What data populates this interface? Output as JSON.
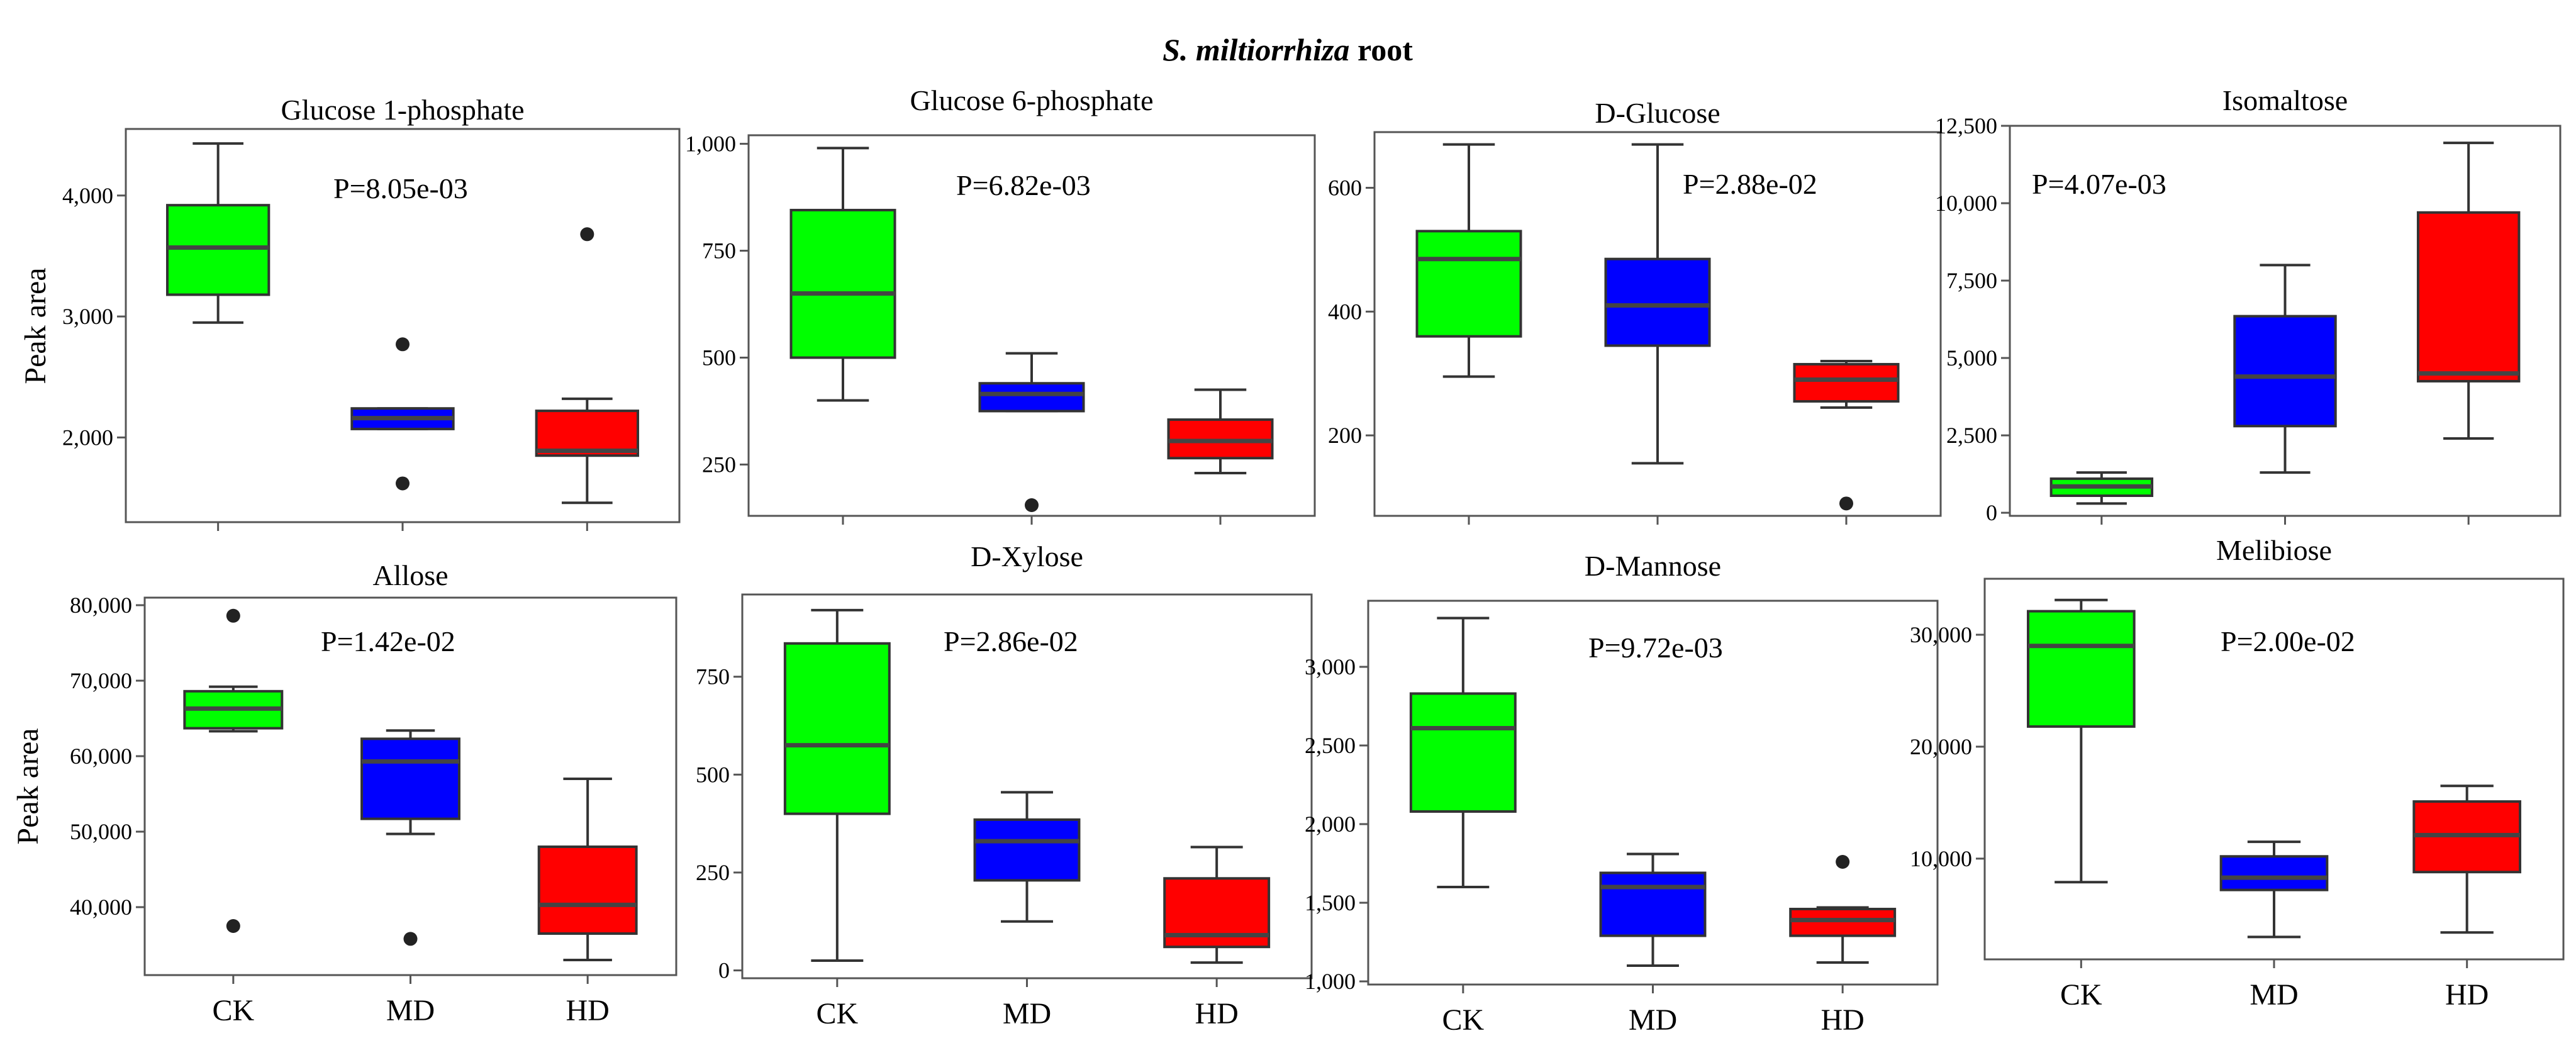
{
  "title": {
    "italic": "S. miltiorrhiza",
    "plain": " root"
  },
  "ylabel": "Peak area",
  "colors": {
    "CK": "#00ff00",
    "MD": "#0000ff",
    "HD": "#ff0000"
  },
  "chart_data": [
    {
      "type": "box",
      "title": "Glucose 1-phosphate",
      "pvalue": "P=8.05e-03",
      "categories": [
        "CK",
        "MD",
        "HD"
      ],
      "show_xlabels": false,
      "ylabel": "Peak area",
      "ylim": [
        1300,
        4550
      ],
      "yticks": [
        2000,
        3000,
        4000
      ],
      "ytick_labels": [
        "2,000",
        "3,000",
        "4,000"
      ],
      "boxes": [
        {
          "min": 2950,
          "q1": 3180,
          "median": 3570,
          "q3": 3920,
          "max": 4430,
          "outliers": []
        },
        {
          "min": 2070,
          "q1": 2070,
          "median": 2160,
          "q3": 2240,
          "max": 2240,
          "outliers": [
            2770,
            1620
          ]
        },
        {
          "min": 1460,
          "q1": 1850,
          "median": 1890,
          "q3": 2220,
          "max": 2320,
          "outliers": [
            3680
          ]
        }
      ]
    },
    {
      "type": "box",
      "title": "Glucose 6-phosphate",
      "pvalue": "P=6.82e-03",
      "categories": [
        "CK",
        "MD",
        "HD"
      ],
      "show_xlabels": false,
      "ylabel": "",
      "ylim": [
        130,
        1020
      ],
      "yticks": [
        250,
        500,
        750,
        1000
      ],
      "ytick_labels": [
        "250",
        "500",
        "750",
        "1,000"
      ],
      "boxes": [
        {
          "min": 400,
          "q1": 500,
          "median": 650,
          "q3": 845,
          "max": 990,
          "outliers": []
        },
        {
          "min": 375,
          "q1": 375,
          "median": 415,
          "q3": 440,
          "max": 510,
          "outliers": [
            155
          ]
        },
        {
          "min": 230,
          "q1": 265,
          "median": 305,
          "q3": 355,
          "max": 425,
          "outliers": []
        }
      ]
    },
    {
      "type": "box",
      "title": "D-Glucose",
      "pvalue": "P=2.88e-02",
      "categories": [
        "CK",
        "MD",
        "HD"
      ],
      "show_xlabels": false,
      "ylabel": "",
      "ylim": [
        70,
        690
      ],
      "yticks": [
        200,
        400,
        600
      ],
      "ytick_labels": [
        "200",
        "400",
        "600"
      ],
      "boxes": [
        {
          "min": 295,
          "q1": 360,
          "median": 485,
          "q3": 530,
          "max": 670,
          "outliers": []
        },
        {
          "min": 155,
          "q1": 345,
          "median": 410,
          "q3": 485,
          "max": 670,
          "outliers": []
        },
        {
          "min": 245,
          "q1": 255,
          "median": 290,
          "q3": 315,
          "max": 320,
          "outliers": [
            90
          ]
        }
      ]
    },
    {
      "type": "box",
      "title": "Isomaltose",
      "pvalue": "P=4.07e-03",
      "categories": [
        "CK",
        "MD",
        "HD"
      ],
      "show_xlabels": false,
      "ylabel": "",
      "ylim": [
        -100,
        12500
      ],
      "yticks": [
        0,
        2500,
        5000,
        7500,
        10000,
        12500
      ],
      "ytick_labels": [
        "0",
        "2,500",
        "5,000",
        "7,500",
        "10,000",
        "12,500"
      ],
      "boxes": [
        {
          "min": 300,
          "q1": 550,
          "median": 850,
          "q3": 1100,
          "max": 1300,
          "outliers": []
        },
        {
          "min": 1300,
          "q1": 2800,
          "median": 4400,
          "q3": 6350,
          "max": 8000,
          "outliers": []
        },
        {
          "min": 2400,
          "q1": 4250,
          "median": 4500,
          "q3": 9700,
          "max": 11950,
          "outliers": []
        }
      ]
    },
    {
      "type": "box",
      "title": "Allose",
      "pvalue": "P=1.42e-02",
      "categories": [
        "CK",
        "MD",
        "HD"
      ],
      "show_xlabels": true,
      "ylabel": "Peak area",
      "ylim": [
        31000,
        81000
      ],
      "yticks": [
        40000,
        50000,
        60000,
        70000,
        80000
      ],
      "ytick_labels": [
        "40,000",
        "50,000",
        "60,000",
        "70,000",
        "80,000"
      ],
      "boxes": [
        {
          "min": 63300,
          "q1": 63700,
          "median": 66300,
          "q3": 68600,
          "max": 69200,
          "outliers": [
            78600,
            37500
          ]
        },
        {
          "min": 49700,
          "q1": 51700,
          "median": 59300,
          "q3": 62300,
          "max": 63400,
          "outliers": [
            35800
          ]
        },
        {
          "min": 33000,
          "q1": 36500,
          "median": 40300,
          "q3": 48000,
          "max": 57000,
          "outliers": []
        }
      ]
    },
    {
      "type": "box",
      "title": "D-Xylose",
      "pvalue": "P=2.86e-02",
      "categories": [
        "CK",
        "MD",
        "HD"
      ],
      "show_xlabels": true,
      "ylabel": "",
      "ylim": [
        -20,
        960
      ],
      "yticks": [
        0,
        250,
        500,
        750
      ],
      "ytick_labels": [
        "0",
        "250",
        "500",
        "750"
      ],
      "boxes": [
        {
          "min": 25,
          "q1": 400,
          "median": 575,
          "q3": 835,
          "max": 920,
          "outliers": []
        },
        {
          "min": 125,
          "q1": 230,
          "median": 330,
          "q3": 385,
          "max": 455,
          "outliers": []
        },
        {
          "min": 20,
          "q1": 60,
          "median": 90,
          "q3": 235,
          "max": 315,
          "outliers": []
        }
      ]
    },
    {
      "type": "box",
      "title": "D-Mannose",
      "pvalue": "P=9.72e-03",
      "categories": [
        "CK",
        "MD",
        "HD"
      ],
      "show_xlabels": true,
      "ylabel": "",
      "ylim": [
        980,
        3420
      ],
      "yticks": [
        1000,
        1500,
        2000,
        2500,
        3000
      ],
      "ytick_labels": [
        "1,000",
        "1,500",
        "2,000",
        "2,500",
        "3,000"
      ],
      "boxes": [
        {
          "min": 1600,
          "q1": 2080,
          "median": 2610,
          "q3": 2830,
          "max": 3310,
          "outliers": []
        },
        {
          "min": 1100,
          "q1": 1290,
          "median": 1600,
          "q3": 1690,
          "max": 1810,
          "outliers": []
        },
        {
          "min": 1120,
          "q1": 1290,
          "median": 1390,
          "q3": 1460,
          "max": 1470,
          "outliers": [
            1760
          ]
        }
      ]
    },
    {
      "type": "box",
      "title": "Melibiose",
      "pvalue": "P=2.00e-02",
      "categories": [
        "CK",
        "MD",
        "HD"
      ],
      "show_xlabels": true,
      "ylabel": "",
      "ylim": [
        1000,
        35000
      ],
      "yticks": [
        10000,
        20000,
        30000
      ],
      "ytick_labels": [
        "10,000",
        "20,000",
        "30,000"
      ],
      "boxes": [
        {
          "min": 7900,
          "q1": 21800,
          "median": 29000,
          "q3": 32100,
          "max": 33100,
          "outliers": []
        },
        {
          "min": 3000,
          "q1": 7200,
          "median": 8300,
          "q3": 10200,
          "max": 11500,
          "outliers": []
        },
        {
          "min": 3400,
          "q1": 8800,
          "median": 12100,
          "q3": 15100,
          "max": 16500,
          "outliers": []
        }
      ]
    }
  ]
}
